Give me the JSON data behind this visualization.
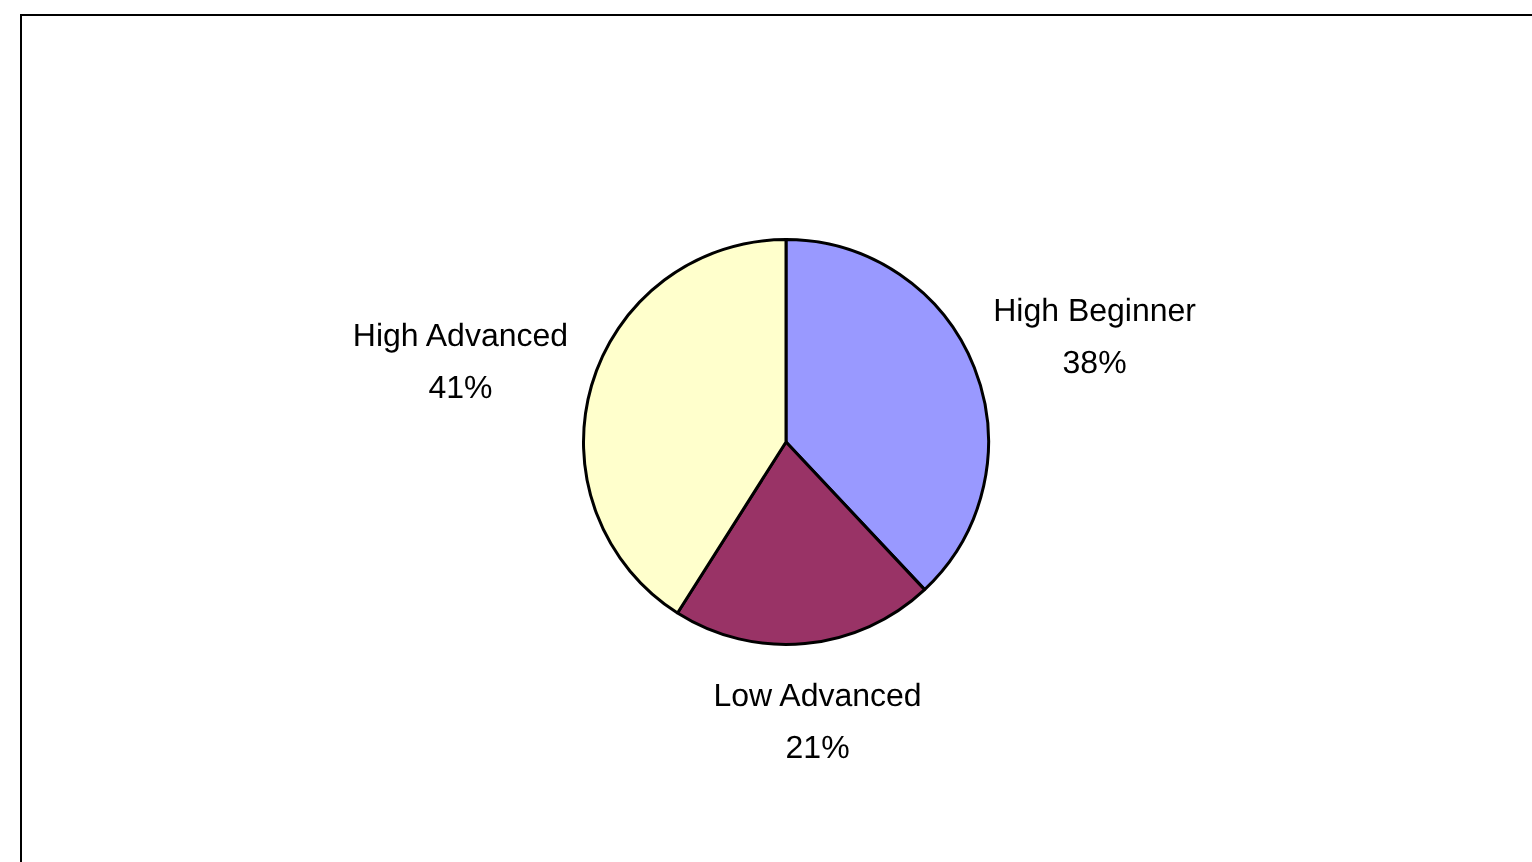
{
  "chart_data": {
    "type": "pie",
    "categories": [
      "High Beginner",
      "Low Advanced",
      "High Advanced"
    ],
    "values": [
      38,
      21,
      41
    ],
    "colors": [
      "#9999ff",
      "#993366",
      "#ffffcc"
    ],
    "value_labels": [
      "38%",
      "21%",
      "41%"
    ]
  }
}
